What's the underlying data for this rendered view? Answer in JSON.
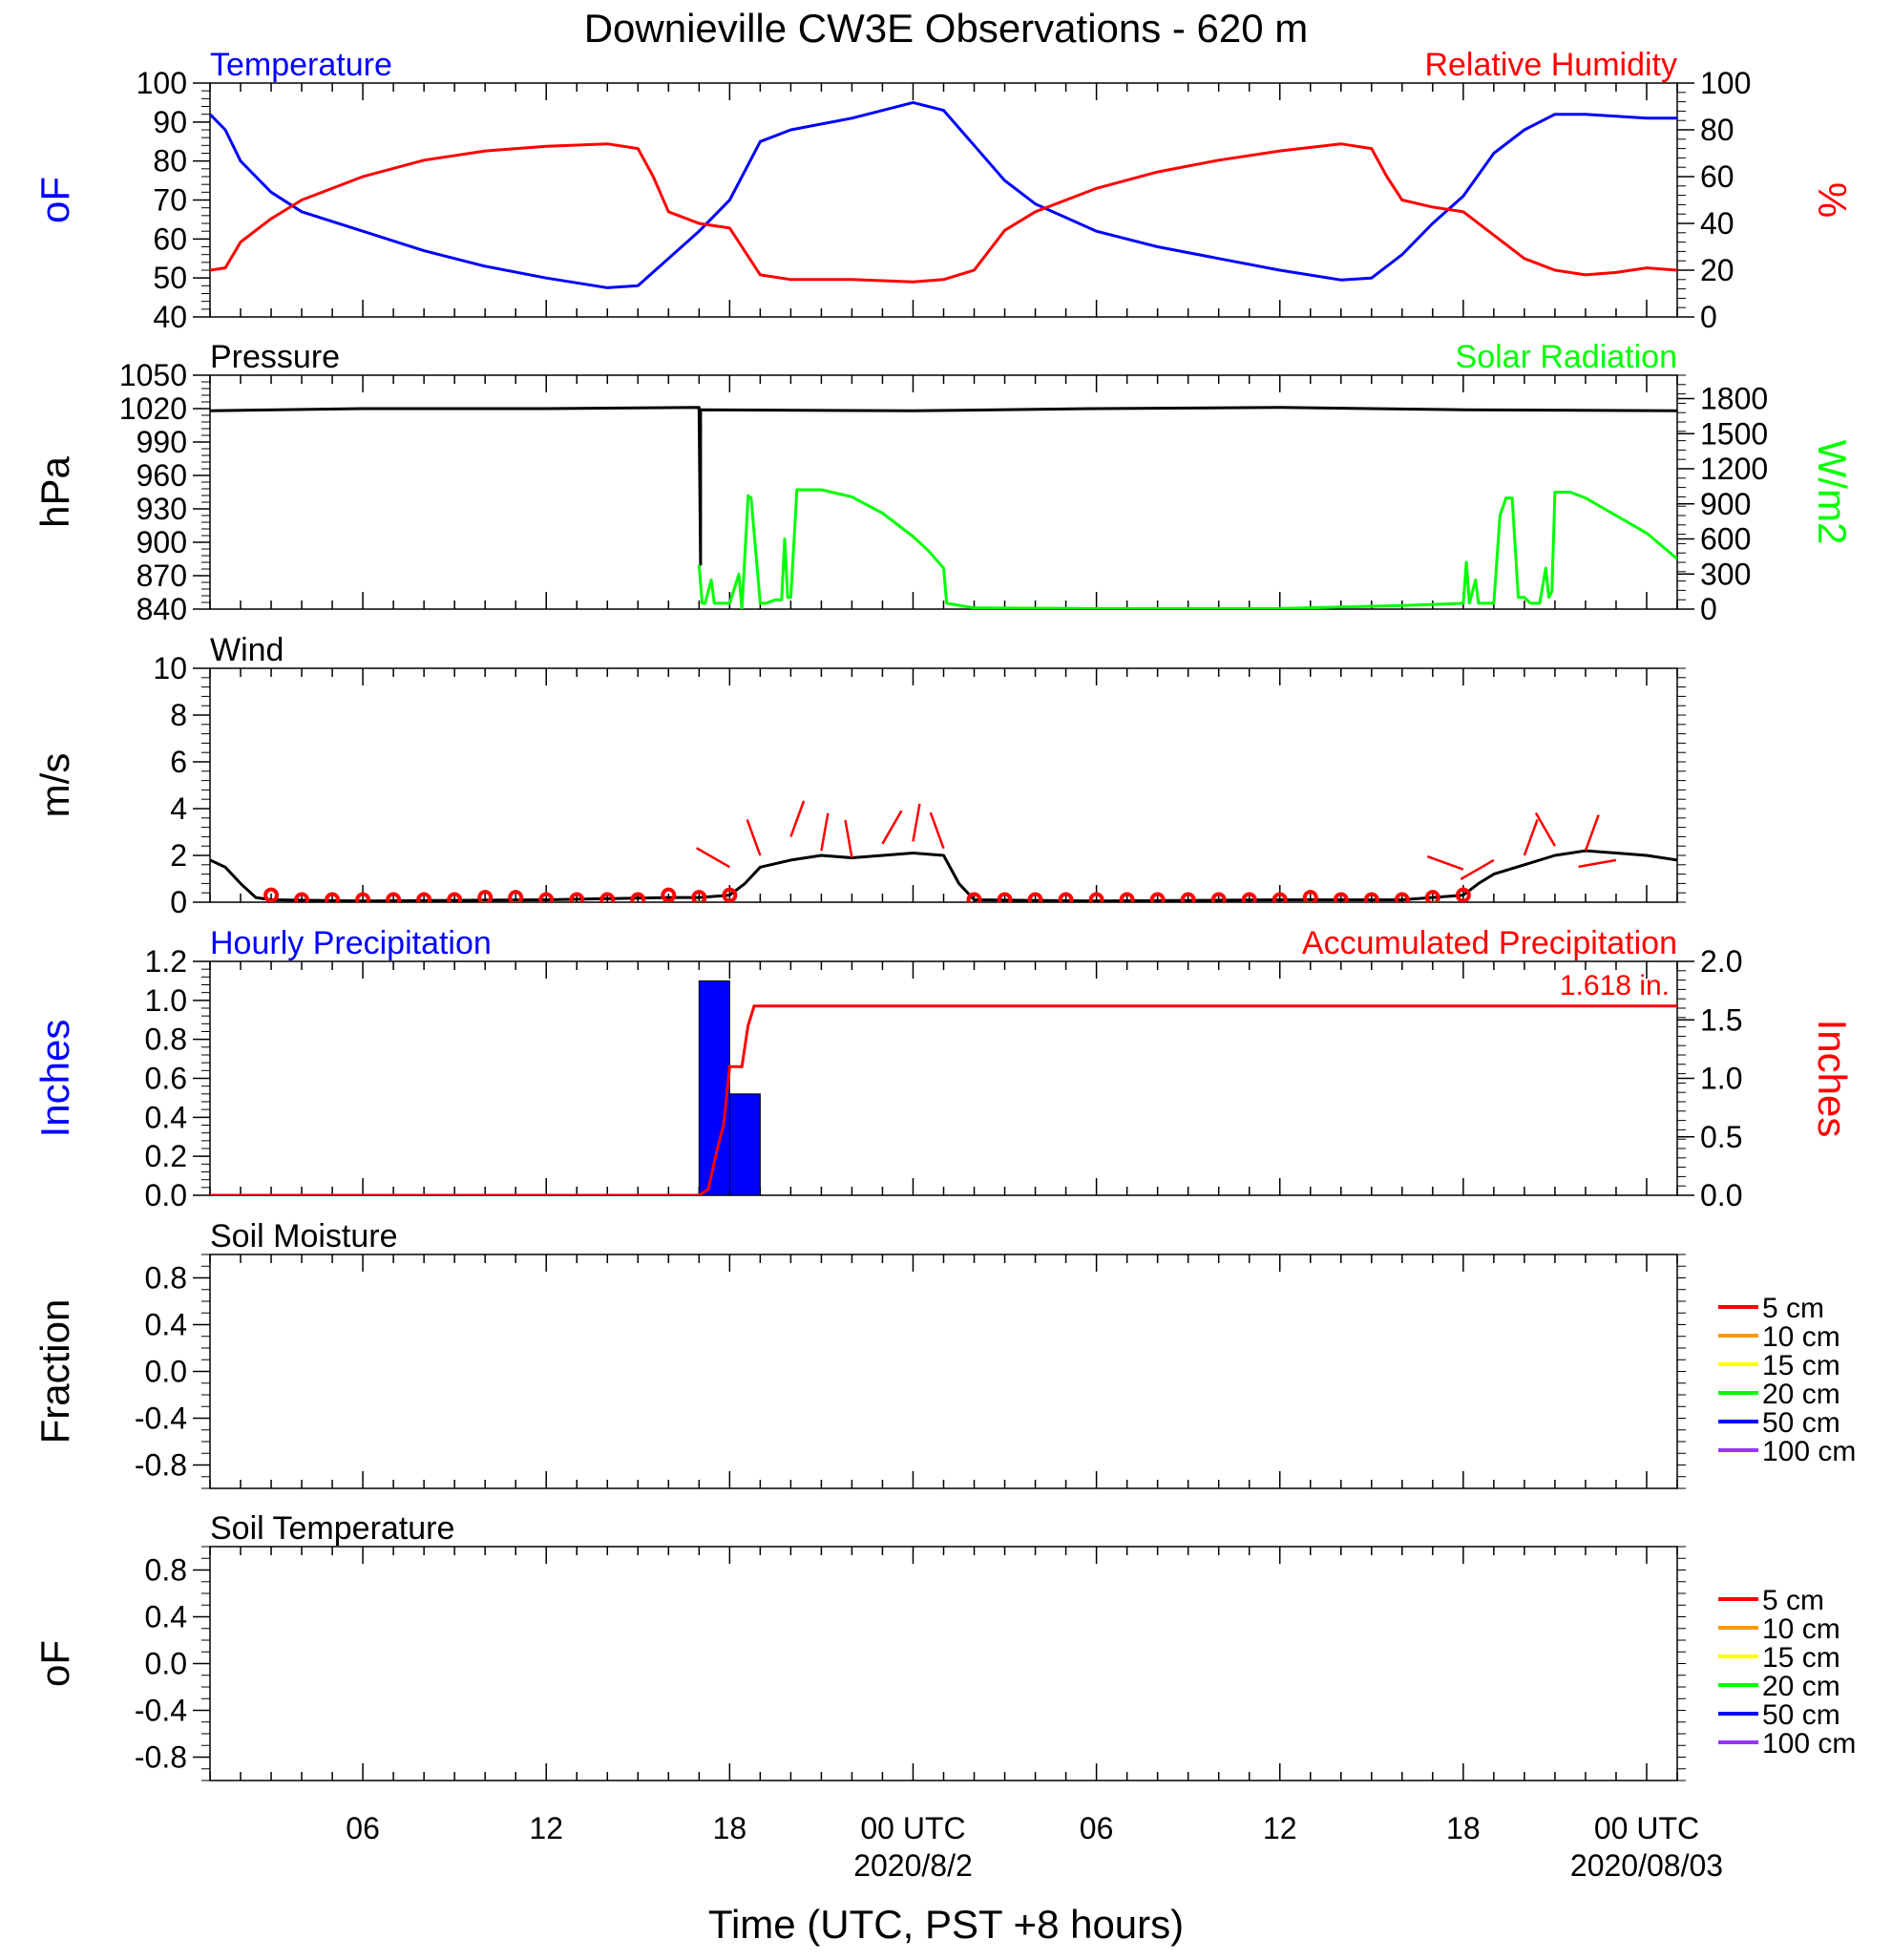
{
  "figure": {
    "title": "Downieville CW3E Observations - 620 m",
    "xlabel": "Time (UTC, PST +8 hours)",
    "x_ticks": [
      {
        "t": 6,
        "label": "06"
      },
      {
        "t": 12,
        "label": "12"
      },
      {
        "t": 18,
        "label": "18"
      },
      {
        "t": 24,
        "label": "00 UTC"
      },
      {
        "t": 30,
        "label": "06"
      },
      {
        "t": 36,
        "label": "12"
      },
      {
        "t": 42,
        "label": "18"
      },
      {
        "t": 48,
        "label": "00 UTC"
      }
    ],
    "date_labels": [
      {
        "t": 24,
        "label": "2020/8/2"
      },
      {
        "t": 48,
        "label": "2020/08/03"
      }
    ],
    "x_range_hours": [
      1,
      49
    ]
  },
  "chart_data": [
    {
      "type": "line",
      "left_title": "Temperature",
      "right_title": "Relative Humidity",
      "left_ylabel": "oF",
      "right_ylabel": "%",
      "ylim_left": [
        40,
        100
      ],
      "ylim_right": [
        0,
        100
      ],
      "left_ticks": [
        "100",
        "90",
        "80",
        "70",
        "60",
        "50",
        "40"
      ],
      "right_ticks": [
        "100",
        "80",
        "60",
        "40",
        "20",
        "0"
      ],
      "colors": {
        "left": "#0000ff",
        "right": "#ff0000"
      },
      "series": [
        {
          "axis": "left",
          "color": "#0000ff",
          "x": [
            1,
            1.5,
            2,
            3,
            4,
            6,
            8,
            10,
            12,
            14,
            15,
            16,
            17,
            18,
            19,
            20,
            22,
            24,
            25,
            26,
            27,
            28,
            30,
            32,
            34,
            36,
            38,
            39,
            40,
            41,
            42,
            43,
            44,
            45,
            46,
            47,
            48,
            49
          ],
          "y": [
            92,
            88,
            80,
            72,
            67,
            62,
            57,
            53,
            50,
            47.5,
            48,
            55,
            62,
            70,
            85,
            88,
            91,
            95,
            93,
            84,
            75,
            69,
            62,
            58,
            55,
            52,
            49.5,
            50,
            56,
            64,
            71,
            82,
            88,
            92,
            92,
            91.5,
            91,
            91
          ]
        },
        {
          "axis": "right",
          "color": "#ff0000",
          "x": [
            1,
            1.5,
            2,
            3,
            4,
            6,
            8,
            10,
            12,
            14,
            15,
            15.5,
            16,
            17,
            18,
            19,
            20,
            22,
            24,
            25,
            26,
            27,
            28,
            30,
            32,
            34,
            36,
            38,
            39,
            39.5,
            40,
            41,
            42,
            43,
            44,
            45,
            46,
            47,
            48,
            49
          ],
          "y": [
            20,
            21,
            32,
            42,
            50,
            60,
            67,
            71,
            73,
            74,
            72,
            60,
            45,
            40,
            38,
            18,
            16,
            16,
            15,
            16,
            20,
            37,
            45,
            55,
            62,
            67,
            71,
            74,
            72,
            60,
            50,
            47,
            45,
            35,
            25,
            20,
            18,
            19,
            21,
            20
          ]
        }
      ]
    },
    {
      "type": "line",
      "left_title": "Pressure",
      "right_title": "Solar Radiation",
      "left_ylabel": "hPa",
      "right_ylabel": "W/m2",
      "ylim_left": [
        840,
        1050
      ],
      "ylim_right": [
        0,
        2000
      ],
      "left_ticks": [
        "1050",
        "1020",
        "990",
        "960",
        "930",
        "900",
        "870",
        "840"
      ],
      "right_ticks": [
        "1800",
        "1500",
        "1200",
        "900",
        "600",
        "300",
        "0"
      ],
      "colors": {
        "left": "#000000",
        "right": "#00ff00"
      },
      "series": [
        {
          "axis": "left",
          "color": "#000000",
          "x": [
            1,
            6,
            12,
            17,
            17,
            17.05,
            17.05,
            24,
            30,
            36,
            42,
            49
          ],
          "y": [
            1018,
            1020,
            1020,
            1021,
            1020,
            880,
            1019,
            1018,
            1020,
            1021,
            1019,
            1018
          ]
        },
        {
          "axis": "right",
          "color": "#00ff00",
          "x": [
            17,
            17.1,
            17.2,
            17.4,
            17.5,
            17.7,
            18,
            18.3,
            18.4,
            18.6,
            18.6,
            18.7,
            19,
            19.2,
            19.5,
            19.7,
            19.8,
            19.9,
            20,
            20.2,
            20.5,
            21,
            22,
            23,
            24,
            24.5,
            25,
            25.1,
            26,
            30,
            36,
            40,
            42,
            42.1,
            42.2,
            42.4,
            42.5,
            42.7,
            43,
            43.2,
            43.4,
            43.6,
            43.8,
            44,
            44.2,
            44.5,
            44.7,
            44.8,
            44.9,
            45,
            45.2,
            45.5,
            46,
            47,
            48,
            49
          ],
          "y": [
            380,
            50,
            50,
            250,
            50,
            50,
            50,
            300,
            0,
            950,
            970,
            950,
            50,
            50,
            80,
            80,
            600,
            100,
            100,
            1020,
            1020,
            1020,
            960,
            820,
            620,
            500,
            350,
            50,
            10,
            5,
            5,
            30,
            50,
            400,
            50,
            250,
            50,
            50,
            50,
            800,
            950,
            950,
            100,
            100,
            50,
            50,
            350,
            100,
            150,
            1000,
            1000,
            1000,
            950,
            800,
            650,
            430
          ]
        }
      ]
    },
    {
      "type": "line",
      "left_title": "Wind",
      "left_ylabel": "m/s",
      "ylim": [
        0,
        10
      ],
      "left_ticks": [
        "10",
        "8",
        "6",
        "4",
        "2",
        "0"
      ],
      "series": [
        {
          "name": "",
          "color": "#000000",
          "x": [
            1,
            1.5,
            2,
            2.5,
            3,
            6,
            12,
            16,
            17,
            18,
            18.5,
            19,
            20,
            21,
            22,
            23,
            24,
            25,
            25.5,
            26,
            30,
            36,
            40,
            42,
            42.5,
            43,
            44,
            45,
            46,
            47,
            48,
            49
          ],
          "y": [
            1.8,
            1.5,
            0.8,
            0.2,
            0.1,
            0.05,
            0.1,
            0.2,
            0.2,
            0.3,
            0.8,
            1.5,
            1.8,
            2.0,
            1.9,
            2.0,
            2.1,
            2.0,
            0.8,
            0.1,
            0.05,
            0.1,
            0.1,
            0.3,
            0.8,
            1.2,
            1.6,
            2.0,
            2.2,
            2.1,
            2.0,
            1.8
          ]
        }
      ],
      "marker_hours": [
        3,
        4,
        5,
        6,
        7,
        8,
        9,
        10,
        11,
        12,
        13,
        14,
        15,
        16,
        17,
        18,
        26,
        27,
        28,
        29,
        30,
        31,
        32,
        33,
        34,
        35,
        36,
        37,
        38,
        39,
        40,
        41,
        42
      ],
      "marker_values": [
        0.3,
        0.1,
        0.1,
        0.1,
        0.1,
        0.1,
        0.1,
        0.2,
        0.2,
        0.1,
        0.1,
        0.1,
        0.1,
        0.3,
        0.2,
        0.3,
        0.1,
        0.1,
        0.1,
        0.1,
        0.1,
        0.1,
        0.1,
        0.1,
        0.1,
        0.1,
        0.1,
        0.2,
        0.1,
        0.1,
        0.1,
        0.2,
        0.3
      ],
      "barbs": [
        {
          "t": 18,
          "spd": 1.5,
          "dir": 300
        },
        {
          "t": 19,
          "spd": 2.0,
          "dir": 340
        },
        {
          "t": 20,
          "spd": 2.8,
          "dir": 20
        },
        {
          "t": 21,
          "spd": 2.2,
          "dir": 10
        },
        {
          "t": 22,
          "spd": 1.9,
          "dir": 350
        },
        {
          "t": 23,
          "spd": 2.5,
          "dir": 30
        },
        {
          "t": 24,
          "spd": 2.6,
          "dir": 10
        },
        {
          "t": 25,
          "spd": 2.3,
          "dir": 340
        },
        {
          "t": 42,
          "spd": 1.4,
          "dir": 290
        },
        {
          "t": 43,
          "spd": 1.8,
          "dir": 240
        },
        {
          "t": 44,
          "spd": 2.0,
          "dir": 20
        },
        {
          "t": 45,
          "spd": 2.4,
          "dir": 330
        },
        {
          "t": 46,
          "spd": 2.2,
          "dir": 20
        },
        {
          "t": 47,
          "spd": 1.8,
          "dir": 260
        }
      ],
      "barb_color": "#ff0000",
      "marker_color": "#ff0000"
    },
    {
      "type": "bar",
      "left_title": "Hourly Precipitation",
      "right_title": "Accumulated Precipitation",
      "left_ylabel": "Inches",
      "right_ylabel": "Inches",
      "ylim_left": [
        0,
        1.2
      ],
      "ylim_right": [
        0,
        2.0
      ],
      "left_ticks": [
        "1.2",
        "1.0",
        "0.8",
        "0.6",
        "0.4",
        "0.2",
        "0.0"
      ],
      "right_ticks": [
        "2.0",
        "1.5",
        "1.0",
        "0.5",
        "0.0"
      ],
      "annotation": "1.618 in.",
      "colors": {
        "left": "#0000ff",
        "right": "#ff0000"
      },
      "bars": [
        {
          "start": 17,
          "end": 18,
          "value": 1.1
        },
        {
          "start": 18,
          "end": 19,
          "value": 0.52
        }
      ],
      "accumulated": {
        "color": "#ff0000",
        "x": [
          1,
          17,
          17.3,
          17.6,
          17.8,
          18.0,
          18.4,
          18.6,
          18.8,
          19,
          49
        ],
        "y": [
          0,
          0,
          0.05,
          0.4,
          0.6,
          1.1,
          1.1,
          1.45,
          1.618,
          1.618,
          1.618
        ]
      }
    },
    {
      "type": "line",
      "left_title": "Soil Moisture",
      "left_ylabel": "Fraction",
      "ylim": [
        -1,
        1
      ],
      "left_ticks": [
        "0.8",
        "0.4",
        "0.0",
        "-0.4",
        "-0.8"
      ],
      "legend": [
        {
          "label": "5 cm",
          "color": "#ff0000"
        },
        {
          "label": "10 cm",
          "color": "#ff9900"
        },
        {
          "label": "15 cm",
          "color": "#ffff00"
        },
        {
          "label": "20 cm",
          "color": "#00ff00"
        },
        {
          "label": "50 cm",
          "color": "#0000ff"
        },
        {
          "label": "100 cm",
          "color": "#9933ff"
        }
      ],
      "legend_position": "right",
      "series": []
    },
    {
      "type": "line",
      "left_title": "Soil Temperature",
      "left_ylabel": "oF",
      "ylim": [
        -1,
        1
      ],
      "left_ticks": [
        "0.8",
        "0.4",
        "0.0",
        "-0.4",
        "-0.8"
      ],
      "legend": [
        {
          "label": "5 cm",
          "color": "#ff0000"
        },
        {
          "label": "10 cm",
          "color": "#ff9900"
        },
        {
          "label": "15 cm",
          "color": "#ffff00"
        },
        {
          "label": "20 cm",
          "color": "#00ff00"
        },
        {
          "label": "50 cm",
          "color": "#0000ff"
        },
        {
          "label": "100 cm",
          "color": "#9933ff"
        }
      ],
      "legend_position": "right",
      "series": []
    }
  ]
}
